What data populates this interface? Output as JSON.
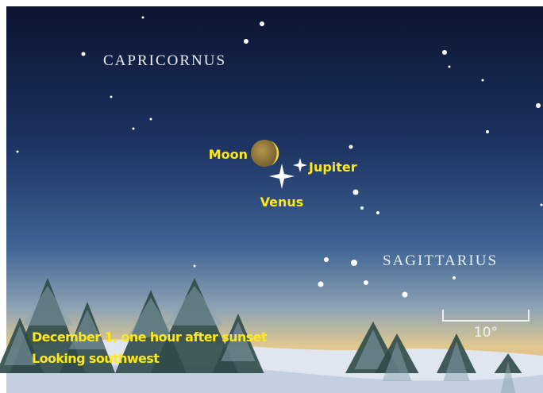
{
  "labels": {
    "constellation_top": "CAPRICORNUS",
    "constellation_bottom": "SAGITTARIUS",
    "moon": "Moon",
    "venus": "Venus",
    "jupiter": "Jupiter"
  },
  "scale": {
    "label": "10°"
  },
  "caption": {
    "line1": "December 1, one hour after sunset",
    "line2": "Looking southwest"
  }
}
